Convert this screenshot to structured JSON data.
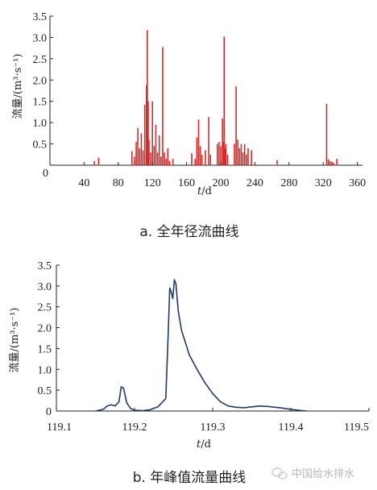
{
  "chart_data": [
    {
      "type": "bar",
      "caption": "a.  全年径流曲线",
      "xlabel_prefix": "t",
      "xlabel_unit": "/d",
      "ylabel": "流量/(m³·s⁻¹)",
      "xlim": [
        0,
        366
      ],
      "ylim": [
        0,
        3.5
      ],
      "xticks": [
        40,
        80,
        120,
        160,
        200,
        240,
        280,
        320,
        360
      ],
      "yticks": [
        0.5,
        1.0,
        1.5,
        2.0,
        2.5,
        3.0,
        3.5
      ],
      "ytick_labels": [
        "0.5",
        "1.0",
        "1.5",
        "2.0",
        "2.5",
        "3.0",
        "3.5"
      ],
      "origin_label": "0",
      "bar_color": "#d42a2a",
      "x": [
        52,
        57,
        96,
        99,
        101,
        103,
        105,
        107,
        109,
        111,
        113,
        114,
        115,
        116,
        118,
        120,
        122,
        124,
        126,
        128,
        130,
        132,
        134,
        136,
        138,
        140,
        144,
        166,
        170,
        172,
        174,
        176,
        178,
        182,
        186,
        188,
        196,
        198,
        200,
        202,
        203,
        204,
        205,
        206,
        208,
        216,
        218,
        220,
        222,
        224,
        226,
        228,
        230,
        232,
        236,
        266,
        324,
        326,
        328,
        330,
        332,
        336
      ],
      "values": [
        0.1,
        0.18,
        0.33,
        0.2,
        0.55,
        0.88,
        0.4,
        0.75,
        0.35,
        1.42,
        1.88,
        3.17,
        1.5,
        0.6,
        0.3,
        1.5,
        0.45,
        0.95,
        0.3,
        0.7,
        0.2,
        2.77,
        0.3,
        0.15,
        0.4,
        0.1,
        0.15,
        0.28,
        0.15,
        0.65,
        1.07,
        0.45,
        0.25,
        0.35,
        1.13,
        0.25,
        0.5,
        0.55,
        0.45,
        1.1,
        0.55,
        3.02,
        0.4,
        0.5,
        0.25,
        0.5,
        1.85,
        0.6,
        0.4,
        0.5,
        0.3,
        0.5,
        0.25,
        0.4,
        0.35,
        0.12,
        1.44,
        0.14,
        0.1,
        0.08,
        0.06,
        0.15
      ]
    },
    {
      "type": "line",
      "caption": "b.  年峰值流量曲线",
      "xlabel_prefix": "t",
      "xlabel_unit": "/d",
      "ylabel": "流量/(m³·s⁻¹)",
      "xlim": [
        119.1,
        119.5
      ],
      "ylim": [
        0,
        3.5
      ],
      "xticks": [
        119.1,
        119.2,
        119.3,
        119.4,
        119.5
      ],
      "xtick_labels": [
        "119.1",
        "119.2",
        "119.3",
        "119.4",
        "119.5"
      ],
      "yticks": [
        0,
        0.5,
        1.0,
        1.5,
        2.0,
        2.5,
        3.0,
        3.5
      ],
      "ytick_labels": [
        "0",
        "0.5",
        "1.0",
        "1.5",
        "2.0",
        "2.5",
        "3.0",
        "3.5"
      ],
      "line_color": "#1f3b66",
      "x": [
        119.15,
        119.16,
        119.165,
        119.17,
        119.175,
        119.18,
        119.183,
        119.186,
        119.19,
        119.195,
        119.2,
        119.21,
        119.22,
        119.23,
        119.235,
        119.24,
        119.243,
        119.245,
        119.247,
        119.249,
        119.251,
        119.253,
        119.256,
        119.26,
        119.265,
        119.27,
        119.28,
        119.29,
        119.3,
        119.31,
        119.32,
        119.33,
        119.34,
        119.35,
        119.36,
        119.37,
        119.38,
        119.39,
        119.4,
        119.41,
        119.42
      ],
      "values": [
        0.0,
        0.04,
        0.12,
        0.15,
        0.12,
        0.22,
        0.58,
        0.55,
        0.2,
        0.06,
        0.02,
        0.01,
        0.03,
        0.1,
        0.2,
        0.3,
        1.8,
        2.95,
        2.85,
        2.7,
        3.15,
        3.05,
        2.4,
        1.95,
        1.65,
        1.35,
        1.0,
        0.68,
        0.42,
        0.22,
        0.12,
        0.09,
        0.08,
        0.1,
        0.12,
        0.11,
        0.09,
        0.07,
        0.04,
        0.02,
        0.0
      ]
    }
  ],
  "watermark": "中国给水排水",
  "watermark_icon": "wechat-icon"
}
